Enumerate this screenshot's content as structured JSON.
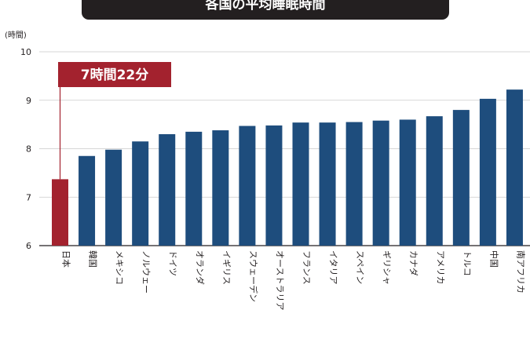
{
  "chart_data": {
    "type": "bar",
    "title": "各国の平均睡眠時間",
    "ylabel": "(時間)",
    "xlabel": "",
    "ylim": [
      6,
      10
    ],
    "yticks": [
      6,
      7,
      8,
      9,
      10
    ],
    "grid": true,
    "categories": [
      "日本",
      "韓国",
      "メキシコ",
      "ノルウェー",
      "ドイツ",
      "オランダ",
      "イギリス",
      "スウェーデン",
      "オーストラリア",
      "フランス",
      "イタリア",
      "スペイン",
      "ギリシャ",
      "カナダ",
      "アメリカ",
      "トルコ",
      "中国",
      "南アフリカ"
    ],
    "values": [
      7.37,
      7.85,
      7.98,
      8.15,
      8.3,
      8.35,
      8.38,
      8.47,
      8.48,
      8.54,
      8.54,
      8.55,
      8.58,
      8.6,
      8.67,
      8.8,
      9.03,
      9.22
    ],
    "highlight_index": 0,
    "annotation": "7時間22分",
    "colors": {
      "bar": "#1e4d7d",
      "highlight": "#a3222e",
      "grid": "#c9c9c9",
      "axis": "#231f20"
    }
  }
}
